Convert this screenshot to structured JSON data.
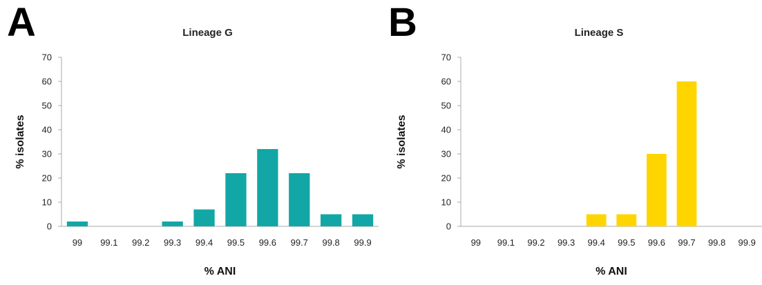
{
  "panels": [
    {
      "letter": "A"
    },
    {
      "letter": "B"
    }
  ],
  "chart_data": [
    {
      "type": "bar",
      "title": "Lineage G",
      "xlabel": "% ANI",
      "ylabel": "% isolates",
      "categories": [
        "99",
        "99.1",
        "99.2",
        "99.3",
        "99.4",
        "99.5",
        "99.6",
        "99.7",
        "99.8",
        "99.9"
      ],
      "values": [
        2,
        0,
        0,
        2,
        7,
        22,
        32,
        22,
        5,
        5
      ],
      "ylim": [
        0,
        70
      ],
      "yticks": [
        0,
        10,
        20,
        30,
        40,
        50,
        60,
        70
      ],
      "grid": false,
      "color": "#13A6A6"
    },
    {
      "type": "bar",
      "title": "Lineage S",
      "xlabel": "% ANI",
      "ylabel": "% isolates",
      "categories": [
        "99",
        "99.1",
        "99.2",
        "99.3",
        "99.4",
        "99.5",
        "99.6",
        "99.7",
        "99.8",
        "99.9"
      ],
      "values": [
        0,
        0,
        0,
        0,
        5,
        5,
        30,
        60,
        0,
        0
      ],
      "ylim": [
        0,
        70
      ],
      "yticks": [
        0,
        10,
        20,
        30,
        40,
        50,
        60,
        70
      ],
      "grid": false,
      "color": "#FFD500"
    }
  ]
}
